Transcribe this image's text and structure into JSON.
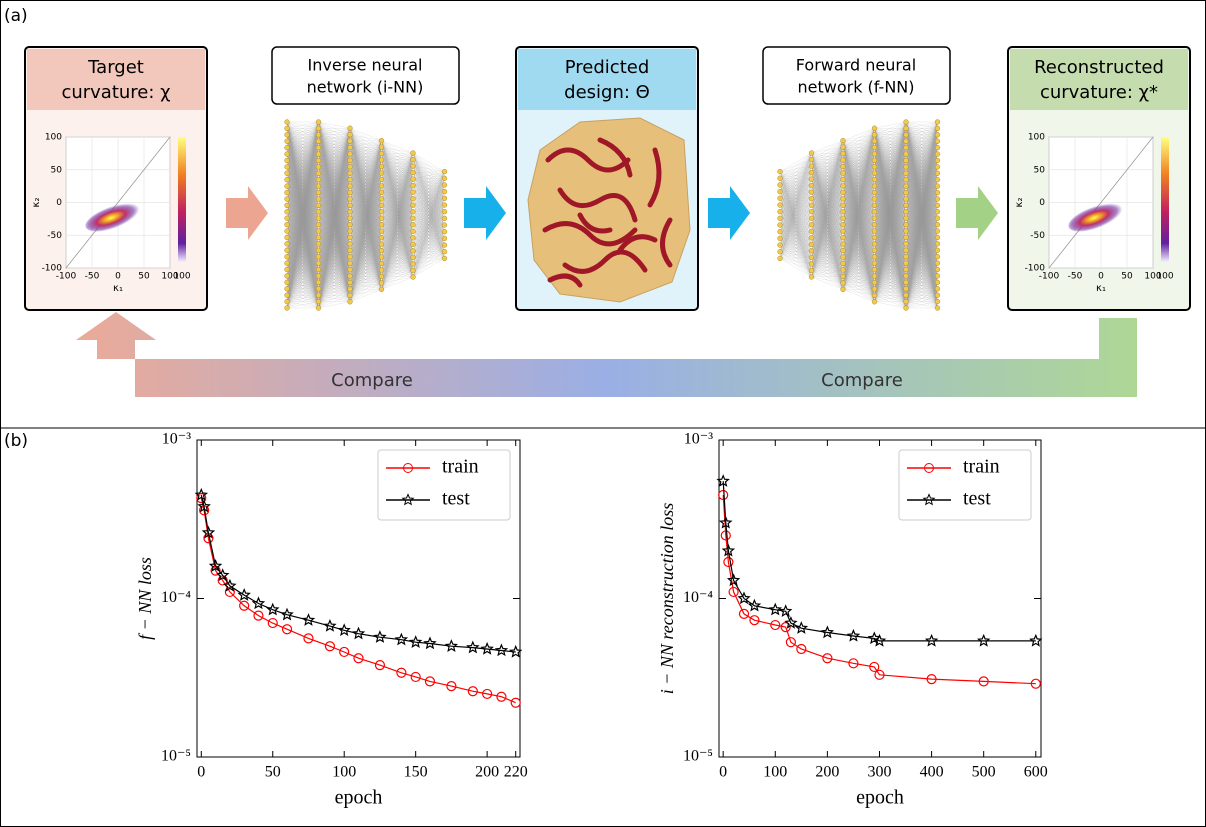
{
  "panel_labels": [
    "(a)",
    "(b)"
  ],
  "workflow": {
    "boxes": [
      {
        "title": [
          "Target",
          "curvature: χ"
        ]
      },
      {
        "title": [
          "Inverse neural",
          "network (i-NN)"
        ]
      },
      {
        "title": [
          "Predicted",
          "design: Θ"
        ]
      },
      {
        "title": [
          "Forward neural",
          "network (f-NN)"
        ]
      },
      {
        "title": [
          "Reconstructed",
          "curvature: χ*"
        ]
      }
    ],
    "compare_labels": [
      "Compare",
      "Compare"
    ],
    "insets": [
      {
        "xlim": [
          -100,
          100
        ],
        "ylim": [
          -100,
          100
        ],
        "xticks": [
          -100,
          -50,
          0,
          50,
          100
        ],
        "yticks": [
          100,
          50,
          0,
          -50,
          -100
        ],
        "xlabel": "κ₁",
        "ylabel": "κ₂",
        "colorbar_ticks": [
          100
        ]
      },
      {
        "xlim": [
          -100,
          100
        ],
        "ylim": [
          -100,
          100
        ],
        "xticks": [
          -100,
          -50,
          0,
          50,
          100
        ],
        "yticks": [
          100,
          50,
          0,
          -50,
          -100
        ],
        "xlabel": "κ₁",
        "ylabel": "κ₂",
        "colorbar_ticks": [
          100
        ]
      }
    ]
  },
  "chart_data": [
    {
      "type": "line",
      "xlabel": "epoch",
      "ylabel": "f − NN loss",
      "x": [
        0,
        2,
        5,
        10,
        15,
        20,
        30,
        40,
        50,
        60,
        75,
        90,
        100,
        110,
        125,
        140,
        150,
        160,
        175,
        190,
        200,
        210,
        220
      ],
      "series": [
        {
          "name": "train",
          "color": "#ff0000",
          "marker": "circle",
          "values": [
            0.00043,
            0.00036,
            0.00024,
            0.00015,
            0.00013,
            0.00011,
            9e-05,
            7.8e-05,
            7e-05,
            6.4e-05,
            5.6e-05,
            5e-05,
            4.6e-05,
            4.2e-05,
            3.8e-05,
            3.4e-05,
            3.2e-05,
            3e-05,
            2.8e-05,
            2.6e-05,
            2.5e-05,
            2.4e-05,
            2.2e-05
          ]
        },
        {
          "name": "test",
          "color": "#000000",
          "marker": "star",
          "values": [
            0.00045,
            0.00038,
            0.00026,
            0.00016,
            0.00014,
            0.00012,
            0.000105,
            9.3e-05,
            8.5e-05,
            7.9e-05,
            7.3e-05,
            6.7e-05,
            6.3e-05,
            6e-05,
            5.7e-05,
            5.5e-05,
            5.3e-05,
            5.2e-05,
            5e-05,
            4.9e-05,
            4.8e-05,
            4.7e-05,
            4.6e-05
          ]
        }
      ],
      "xlim": [
        -3,
        223
      ],
      "xticks": [
        0,
        50,
        100,
        150,
        200,
        220
      ],
      "ylim": [
        1e-05,
        0.001
      ],
      "log_y": true,
      "yticks": [
        {
          "value": 1e-05,
          "label": "10⁻⁵"
        },
        {
          "value": 0.0001,
          "label": "10⁻⁴"
        },
        {
          "value": 0.001,
          "label": "10⁻³"
        }
      ],
      "legend": "upper right"
    },
    {
      "type": "line",
      "xlabel": "epoch",
      "ylabel": "i − NN reconstruction loss",
      "x": [
        0,
        5,
        10,
        20,
        40,
        60,
        100,
        120,
        130,
        150,
        200,
        250,
        290,
        300,
        400,
        500,
        600
      ],
      "series": [
        {
          "name": "train",
          "color": "#ff0000",
          "marker": "circle",
          "values": [
            0.00045,
            0.00025,
            0.00017,
            0.00011,
            8e-05,
            7.3e-05,
            6.8e-05,
            6.6e-05,
            5.3e-05,
            4.8e-05,
            4.2e-05,
            3.9e-05,
            3.7e-05,
            3.3e-05,
            3.1e-05,
            3e-05,
            2.9e-05
          ]
        },
        {
          "name": "test",
          "color": "#000000",
          "marker": "star",
          "values": [
            0.00055,
            0.0003,
            0.0002,
            0.00013,
            0.0001,
            9e-05,
            8.5e-05,
            8.3e-05,
            7e-05,
            6.5e-05,
            6.1e-05,
            5.8e-05,
            5.6e-05,
            5.4e-05,
            5.4e-05,
            5.4e-05,
            5.4e-05
          ]
        }
      ],
      "xlim": [
        -8,
        610
      ],
      "xticks": [
        0,
        100,
        200,
        300,
        400,
        500,
        600
      ],
      "ylim": [
        1e-05,
        0.001
      ],
      "log_y": true,
      "yticks": [
        {
          "value": 1e-05,
          "label": "10⁻⁵"
        },
        {
          "value": 0.0001,
          "label": "10⁻⁴"
        },
        {
          "value": 0.001,
          "label": "10⁻³"
        }
      ],
      "legend": "upper right"
    }
  ]
}
